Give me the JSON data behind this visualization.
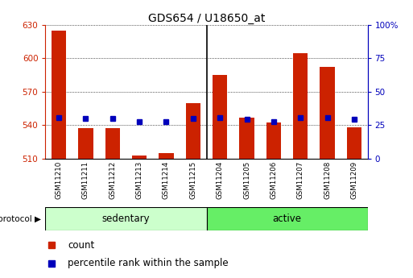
{
  "title": "GDS654 / U18650_at",
  "samples": [
    "GSM11210",
    "GSM11211",
    "GSM11212",
    "GSM11213",
    "GSM11214",
    "GSM11215",
    "GSM11204",
    "GSM11205",
    "GSM11206",
    "GSM11207",
    "GSM11208",
    "GSM11209"
  ],
  "count_values": [
    625,
    537,
    537,
    513,
    515,
    560,
    585,
    547,
    542,
    605,
    592,
    538
  ],
  "percentile_values": [
    547,
    546,
    546,
    543,
    543,
    546,
    547,
    545,
    543,
    547,
    547,
    545
  ],
  "ylim_left": [
    510,
    630
  ],
  "ylim_right": [
    0,
    100
  ],
  "yticks_left": [
    510,
    540,
    570,
    600,
    630
  ],
  "yticks_right": [
    0,
    25,
    50,
    75,
    100
  ],
  "bar_color": "#cc2200",
  "square_color": "#0000bb",
  "sedentary_color": "#ccffcc",
  "active_color": "#66ee66",
  "n_sedentary": 6,
  "n_active": 6,
  "protocol_label": "protocol",
  "sedentary_label": "sedentary",
  "active_label": "active",
  "legend_count": "count",
  "legend_percentile": "percentile rank within the sample",
  "bar_width": 0.55,
  "title_fontsize": 10,
  "tick_fontsize": 7.5,
  "label_fontsize": 8
}
